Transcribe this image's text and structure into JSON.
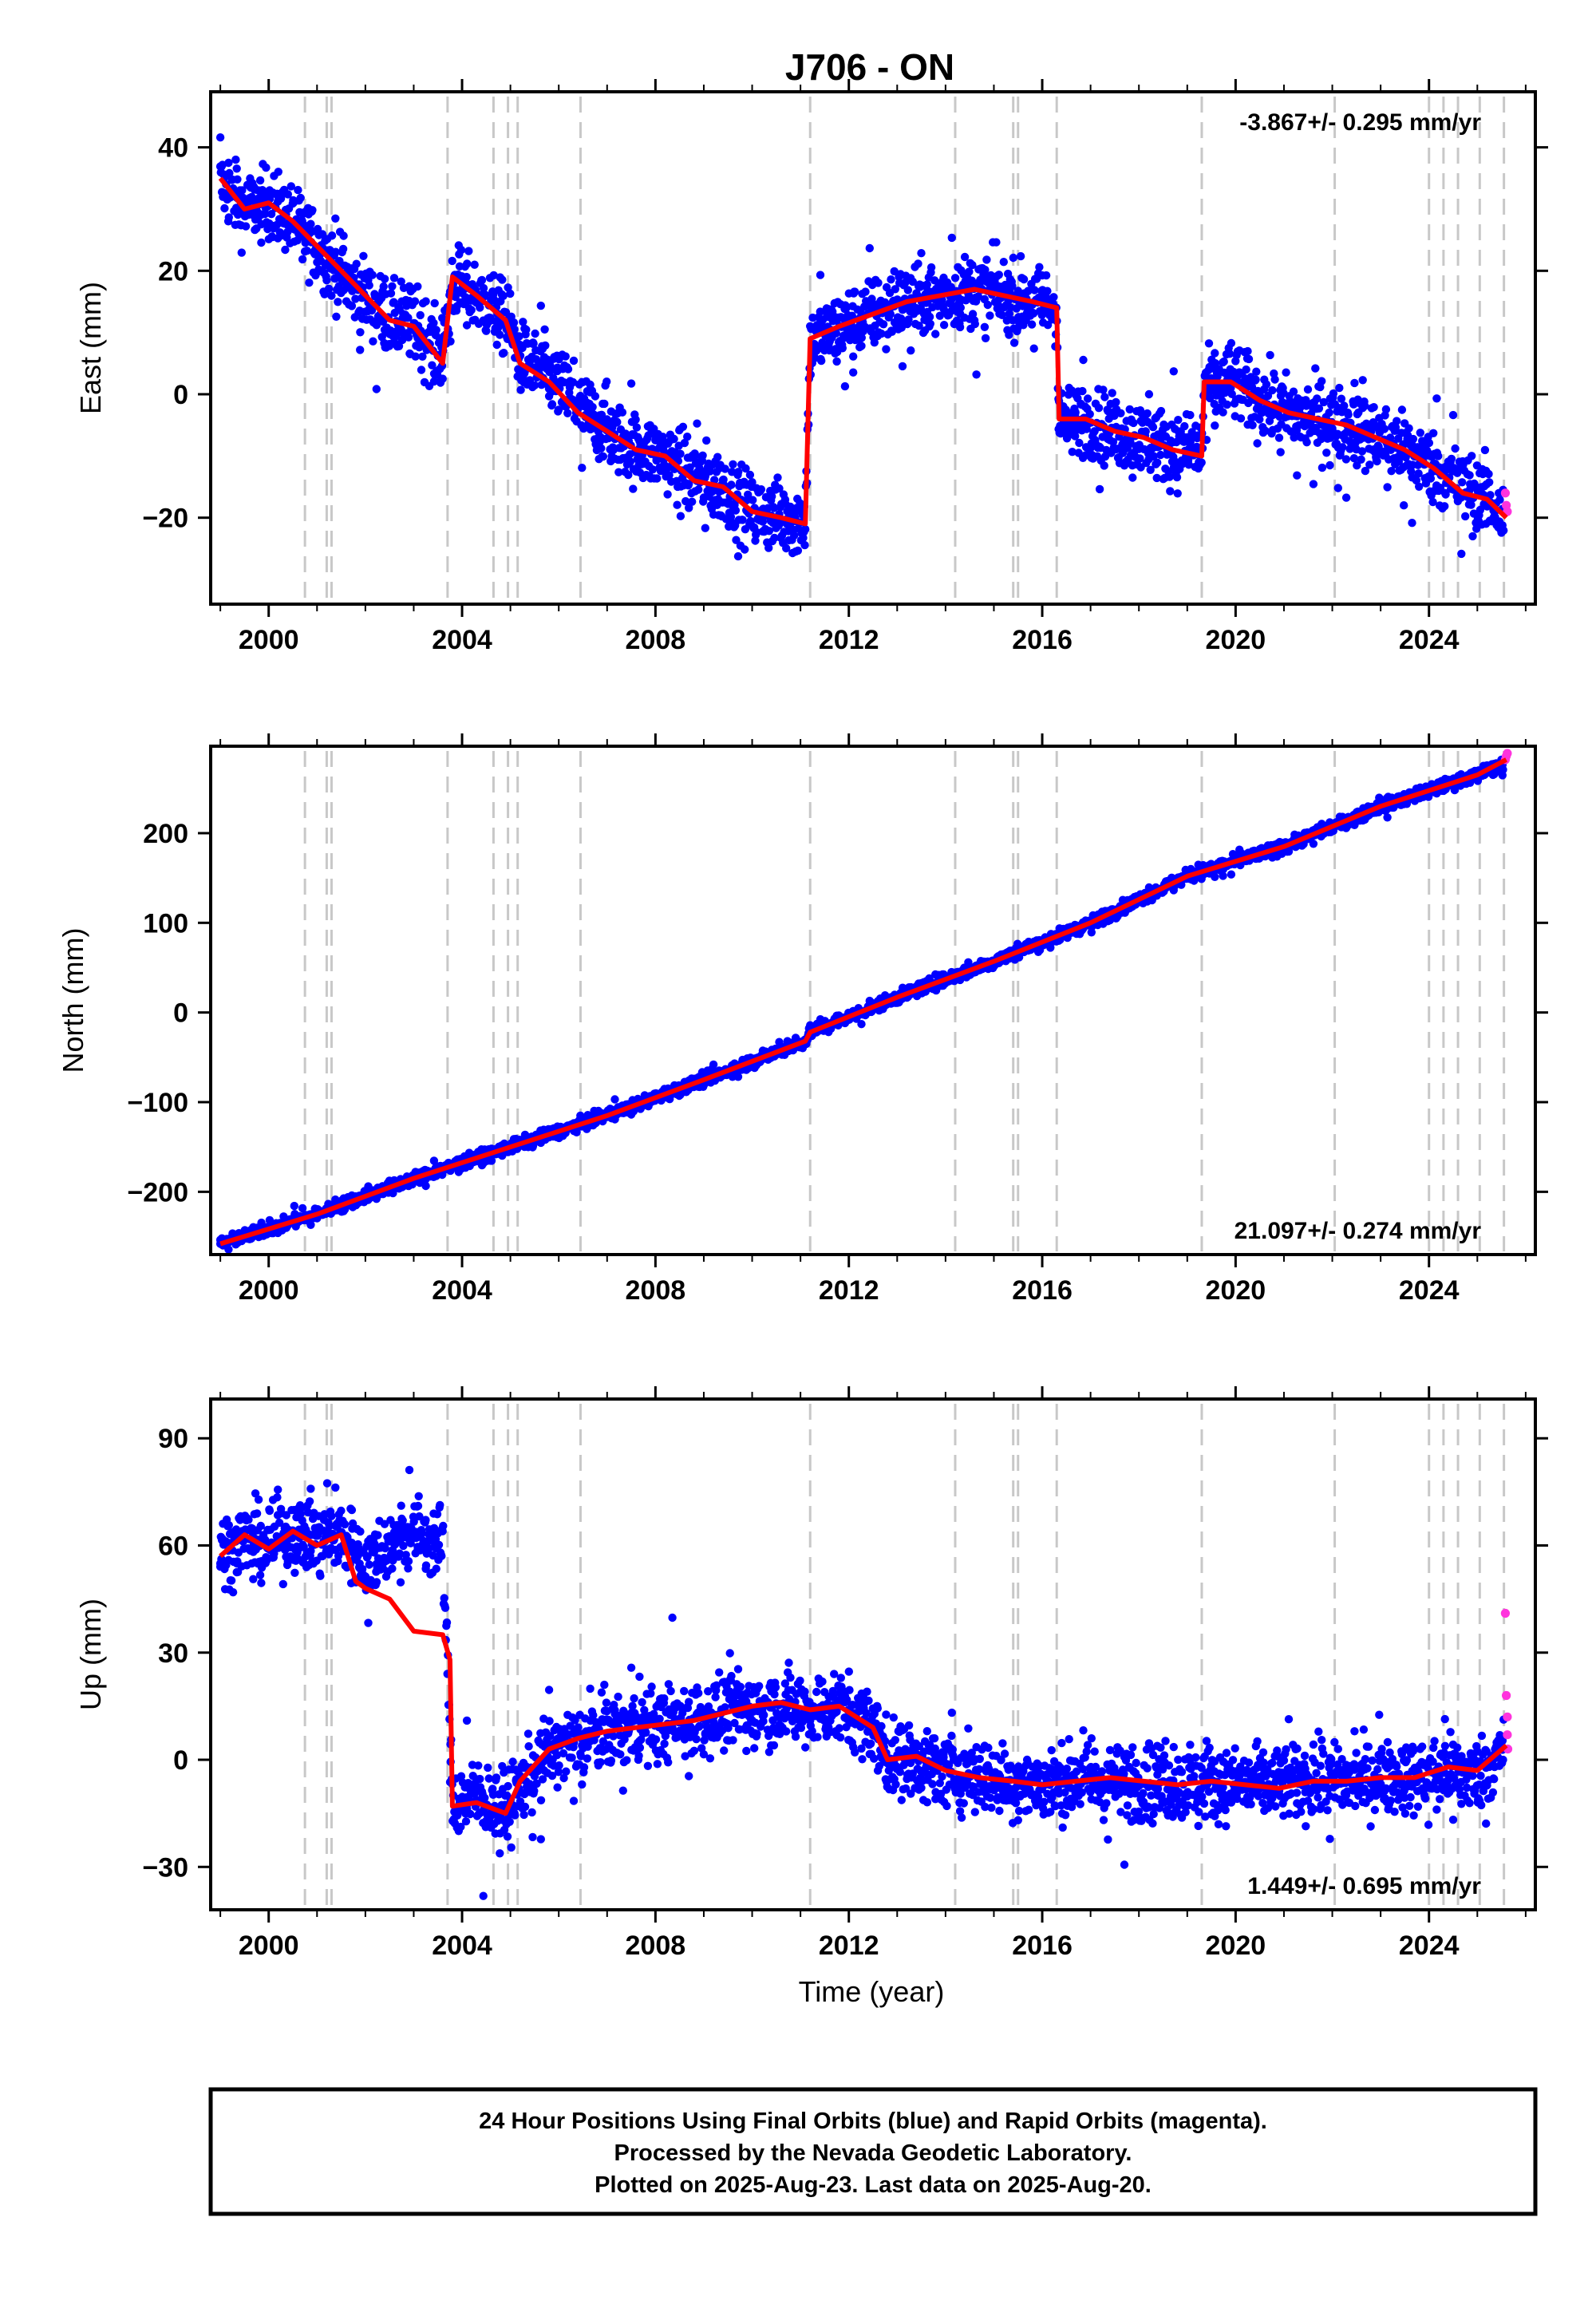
{
  "title": "J706 - ON",
  "xlabel": "Time (year)",
  "colors": {
    "final": "#0000ff",
    "rapid": "#ff33dd",
    "model": "#ff0000",
    "event": "#c8c8c8"
  },
  "footer": [
    "24 Hour Positions Using Final Orbits (blue) and Rapid Orbits (magenta).",
    "Processed by the Nevada Geodetic Laboratory.",
    "Plotted on 2025-Aug-23. Last data on 2025-Aug-20."
  ],
  "chart_data": [
    {
      "type": "scatter",
      "ylabel": "East (mm)",
      "rate_label": "-3.867+/- 0.295 mm/yr",
      "rate_position": "top-right",
      "xlim": [
        1998.8,
        2026.2
      ],
      "ylim": [
        -34,
        49
      ],
      "xticks": [
        "2000",
        "2004",
        "2008",
        "2012",
        "2016",
        "2020",
        "2024"
      ],
      "yticks": [
        "40",
        "20",
        "0",
        "−20"
      ],
      "series": [
        {
          "role": "final",
          "x": [
            1999.0,
            1999.5,
            2000.0,
            2000.5,
            2001.0,
            2001.5,
            2002.0,
            2002.5,
            2003.0,
            2003.6,
            2003.8,
            2004.3,
            2004.9,
            2005.2,
            2005.8,
            2006.4,
            2007.0,
            2007.6,
            2008.2,
            2008.8,
            2009.4,
            2010.0,
            2010.6,
            2011.1,
            2011.2,
            2011.8,
            2012.5,
            2013.2,
            2013.9,
            2014.6,
            2015.2,
            2015.8,
            2016.3,
            2016.35,
            2016.9,
            2017.5,
            2018.1,
            2018.7,
            2019.3,
            2019.35,
            2019.9,
            2020.5,
            2021.1,
            2021.7,
            2022.3,
            2022.9,
            2023.5,
            2024.1,
            2024.7,
            2025.2,
            2025.55
          ],
          "y": [
            34,
            30,
            31,
            28,
            24,
            19,
            16,
            12,
            11,
            6,
            18,
            16,
            12,
            6,
            3,
            -2,
            -6,
            -9,
            -10,
            -13,
            -15,
            -19,
            -20,
            -20,
            8,
            11,
            13,
            15,
            16,
            17,
            16,
            15,
            14,
            -5,
            -4,
            -6,
            -7,
            -9,
            -9,
            1,
            2,
            -1,
            -3,
            -4,
            -5,
            -7,
            -9,
            -12,
            -15,
            -17,
            -20
          ]
        },
        {
          "role": "rapid",
          "x": [
            2025.58,
            2025.6,
            2025.62
          ],
          "y": [
            -16,
            -18,
            -19
          ]
        }
      ],
      "model": {
        "x": [
          1999.0,
          1999.5,
          2000.0,
          2000.5,
          2001.0,
          2001.5,
          2002.0,
          2002.5,
          2003.0,
          2003.6,
          2003.8,
          2004.3,
          2004.9,
          2005.2,
          2005.8,
          2006.4,
          2007.0,
          2007.6,
          2008.2,
          2008.8,
          2009.4,
          2010.0,
          2010.6,
          2011.1,
          2011.2,
          2011.8,
          2012.5,
          2013.2,
          2013.9,
          2014.6,
          2015.2,
          2015.8,
          2016.3,
          2016.35,
          2016.9,
          2017.5,
          2018.1,
          2018.7,
          2019.3,
          2019.35,
          2019.9,
          2020.5,
          2021.1,
          2021.7,
          2022.3,
          2022.9,
          2023.5,
          2024.1,
          2024.7,
          2025.2,
          2025.6
        ],
        "y": [
          35,
          30,
          31,
          28,
          24,
          20,
          16,
          12,
          11,
          5,
          19,
          16,
          12,
          5,
          2,
          -3,
          -6,
          -9,
          -10,
          -14,
          -15,
          -19,
          -20,
          -21,
          9,
          11,
          13,
          15,
          16,
          17,
          16,
          15,
          14,
          -4,
          -4,
          -6,
          -7,
          -9,
          -10,
          2,
          2,
          -1,
          -3,
          -4,
          -5,
          -7,
          -9,
          -12,
          -16,
          -17,
          -20
        ]
      }
    },
    {
      "type": "scatter",
      "ylabel": "North (mm)",
      "rate_label": "21.097+/- 0.274 mm/yr",
      "rate_position": "bottom-right",
      "xlim": [
        1998.8,
        2026.2
      ],
      "ylim": [
        -270,
        297
      ],
      "xticks": [
        "2000",
        "2004",
        "2008",
        "2012",
        "2016",
        "2020",
        "2024"
      ],
      "yticks": [
        "200",
        "100",
        "0",
        "−100",
        "−200"
      ],
      "series": [
        {
          "role": "final",
          "x": [
            1999.0,
            2001.0,
            2003.0,
            2005.0,
            2007.0,
            2009.0,
            2011.1,
            2011.2,
            2013.0,
            2015.0,
            2017.0,
            2019.0,
            2021.0,
            2023.0,
            2025.0,
            2025.55
          ],
          "y": [
            -258,
            -225,
            -185,
            -150,
            -115,
            -75,
            -32,
            -22,
            17,
            57,
            100,
            152,
            185,
            230,
            265,
            278
          ]
        },
        {
          "role": "rapid",
          "x": [
            2025.58,
            2025.6,
            2025.62
          ],
          "y": [
            282,
            286,
            289
          ]
        }
      ],
      "model": {
        "x": [
          1999.0,
          2001.0,
          2003.0,
          2005.0,
          2007.0,
          2009.0,
          2011.1,
          2011.2,
          2013.0,
          2015.0,
          2017.0,
          2019.0,
          2021.0,
          2023.0,
          2025.0,
          2025.6
        ],
        "y": [
          -258,
          -225,
          -185,
          -150,
          -115,
          -75,
          -32,
          -22,
          17,
          57,
          100,
          152,
          185,
          230,
          265,
          282
        ]
      }
    },
    {
      "type": "scatter",
      "ylabel": "Up (mm)",
      "rate_label": "1.449+/- 0.695 mm/yr",
      "rate_position": "bottom-right",
      "xlim": [
        1998.8,
        2026.2
      ],
      "ylim": [
        -42,
        101
      ],
      "xticks": [
        "2000",
        "2004",
        "2008",
        "2012",
        "2016",
        "2020",
        "2024"
      ],
      "yticks": [
        "90",
        "60",
        "30",
        "0",
        "−30"
      ],
      "series": [
        {
          "role": "final",
          "x": [
            1999.0,
            1999.5,
            2000.0,
            2000.5,
            2001.0,
            2001.5,
            2002.0,
            2002.5,
            2003.0,
            2003.6,
            2003.8,
            2004.3,
            2004.9,
            2005.2,
            2005.8,
            2006.4,
            2007.0,
            2007.6,
            2008.2,
            2008.8,
            2009.4,
            2010.0,
            2010.6,
            2011.2,
            2011.8,
            2012.5,
            2012.8,
            2013.4,
            2014.0,
            2014.7,
            2015.4,
            2016.0,
            2016.7,
            2017.4,
            2018.1,
            2018.8,
            2019.5,
            2020.2,
            2020.9,
            2021.6,
            2022.3,
            2023.0,
            2023.7,
            2024.4,
            2025.0,
            2025.55
          ],
          "y": [
            58,
            62,
            60,
            64,
            61,
            63,
            55,
            60,
            64,
            60,
            -12,
            -10,
            -14,
            -8,
            2,
            5,
            8,
            9,
            10,
            11,
            13,
            14,
            15,
            14,
            15,
            10,
            0,
            0,
            -3,
            -5,
            -6,
            -7,
            -6,
            -6,
            -7,
            -7,
            -6,
            -7,
            -7,
            -6,
            -6,
            -5,
            -5,
            -3,
            -4,
            2
          ]
        },
        {
          "role": "rapid",
          "x": [
            2025.58,
            2025.6,
            2025.62,
            2025.62,
            2025.63
          ],
          "y": [
            41,
            18,
            12,
            7,
            3
          ]
        }
      ],
      "model": {
        "x": [
          1999.0,
          1999.5,
          2000.0,
          2000.5,
          2001.0,
          2001.5,
          2001.8,
          2002.0,
          2002.5,
          2003.0,
          2003.6,
          2003.75,
          2003.8,
          2004.3,
          2004.9,
          2005.2,
          2005.8,
          2006.4,
          2007.0,
          2007.6,
          2008.2,
          2008.8,
          2009.4,
          2010.0,
          2010.6,
          2011.2,
          2011.8,
          2012.5,
          2012.8,
          2013.4,
          2014.0,
          2014.7,
          2015.4,
          2016.0,
          2016.7,
          2017.4,
          2018.1,
          2018.8,
          2019.5,
          2020.2,
          2020.9,
          2021.6,
          2022.3,
          2023.0,
          2023.7,
          2024.4,
          2025.0,
          2025.6
        ],
        "y": [
          57,
          63,
          59,
          64,
          60,
          63,
          50,
          48,
          45,
          36,
          35,
          28,
          -13,
          -12,
          -15,
          -6,
          3,
          6,
          8,
          9,
          10,
          11,
          13,
          15,
          16,
          14,
          15,
          9,
          0,
          1,
          -3,
          -5,
          -6,
          -7,
          -6,
          -5,
          -6,
          -7,
          -6,
          -7,
          -8,
          -6,
          -6,
          -5,
          -5,
          -2,
          -3,
          4
        ]
      }
    }
  ],
  "event_years": [
    2000.75,
    2001.2,
    2001.3,
    2003.7,
    2004.65,
    2004.95,
    2005.15,
    2006.45,
    2011.2,
    2014.2,
    2015.4,
    2015.5,
    2016.3,
    2019.3,
    2022.05,
    2024.0,
    2024.3,
    2024.6,
    2025.05,
    2025.55
  ]
}
